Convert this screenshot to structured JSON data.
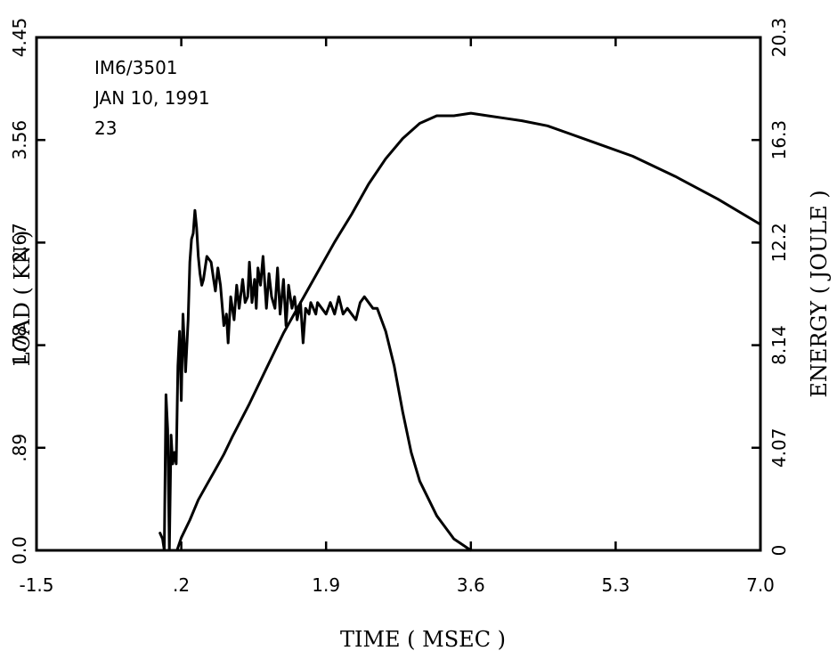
{
  "annotations": [
    "IM6/3501",
    "JAN 10, 1991",
    "23"
  ],
  "chart_data": {
    "type": "line",
    "xlabel": "TIME ( MSEC )",
    "ylabel_left": "LOAD ( KN )",
    "ylabel_right": "ENERGY ( JOULE )",
    "xlim": [
      -1.5,
      7.0
    ],
    "ylim_left": [
      0.0,
      4.45
    ],
    "ylim_right": [
      0,
      20.3
    ],
    "x_ticks": [
      "-1.5",
      ".2",
      "1.9",
      "3.6",
      "5.3",
      "7.0"
    ],
    "y_left_ticks": [
      "0.0",
      ".89",
      "1.78",
      "2.67",
      "3.56",
      "4.45"
    ],
    "y_right_ticks": [
      "0",
      "4.07",
      "8.14",
      "12.2",
      "16.3",
      "20.3"
    ],
    "grid": false,
    "series": [
      {
        "axis": "left",
        "x": [
          -0.05,
          -0.02,
          0.0,
          0.02,
          0.04,
          0.06,
          0.08,
          0.1,
          0.12,
          0.14,
          0.16,
          0.18,
          0.2,
          0.22,
          0.25,
          0.28,
          0.3,
          0.32,
          0.34,
          0.36,
          0.38,
          0.4,
          0.42,
          0.44,
          0.46,
          0.5,
          0.55,
          0.58,
          0.6,
          0.63,
          0.66,
          0.7,
          0.73,
          0.75,
          0.78,
          0.82,
          0.85,
          0.88,
          0.92,
          0.95,
          0.98,
          1.0,
          1.03,
          1.06,
          1.08,
          1.1,
          1.13,
          1.16,
          1.2,
          1.23,
          1.26,
          1.3,
          1.33,
          1.36,
          1.4,
          1.43,
          1.46,
          1.5,
          1.53,
          1.56,
          1.6,
          1.63,
          1.66,
          1.7,
          1.72,
          1.75,
          1.78,
          1.8,
          1.85,
          1.9,
          1.95,
          2.0,
          2.05,
          2.1,
          2.15,
          2.2,
          2.25,
          2.3,
          2.35,
          2.4,
          2.45,
          2.5,
          2.55,
          2.6,
          2.7,
          2.8,
          2.9,
          3.0,
          3.1,
          3.2,
          3.3,
          3.4,
          3.5,
          3.6
        ],
        "values": [
          0.15,
          0.1,
          0.0,
          1.35,
          1.05,
          0.0,
          1.0,
          0.75,
          0.85,
          0.75,
          1.6,
          1.9,
          1.3,
          2.05,
          1.55,
          2.0,
          2.5,
          2.7,
          2.75,
          2.95,
          2.8,
          2.55,
          2.4,
          2.3,
          2.35,
          2.55,
          2.5,
          2.35,
          2.25,
          2.45,
          2.3,
          1.95,
          2.05,
          1.8,
          2.2,
          2.0,
          2.3,
          2.1,
          2.35,
          2.15,
          2.2,
          2.5,
          2.15,
          2.35,
          2.1,
          2.45,
          2.3,
          2.55,
          2.1,
          2.4,
          2.2,
          2.1,
          2.45,
          2.05,
          2.35,
          1.95,
          2.3,
          2.1,
          2.2,
          2.0,
          2.15,
          1.8,
          2.1,
          2.05,
          2.15,
          2.1,
          2.05,
          2.15,
          2.1,
          2.05,
          2.15,
          2.05,
          2.2,
          2.05,
          2.1,
          2.05,
          2.0,
          2.15,
          2.2,
          2.15,
          2.1,
          2.1,
          2.0,
          1.9,
          1.6,
          1.2,
          0.85,
          0.6,
          0.45,
          0.3,
          0.2,
          0.1,
          0.05,
          0.0
        ]
      },
      {
        "axis": "right",
        "x": [
          0.15,
          0.2,
          0.3,
          0.4,
          0.5,
          0.6,
          0.7,
          0.8,
          1.0,
          1.2,
          1.4,
          1.6,
          1.8,
          2.0,
          2.2,
          2.4,
          2.6,
          2.8,
          3.0,
          3.2,
          3.4,
          3.6,
          3.8,
          4.0,
          4.2,
          4.5,
          5.0,
          5.5,
          6.0,
          6.5,
          7.0
        ],
        "values": [
          0.0,
          0.5,
          1.2,
          2.0,
          2.6,
          3.2,
          3.8,
          4.5,
          5.8,
          7.2,
          8.6,
          9.8,
          11.0,
          12.2,
          13.3,
          14.5,
          15.5,
          16.3,
          16.9,
          17.2,
          17.2,
          17.3,
          17.2,
          17.1,
          17.0,
          16.8,
          16.2,
          15.6,
          14.8,
          13.9,
          12.9
        ]
      }
    ]
  }
}
